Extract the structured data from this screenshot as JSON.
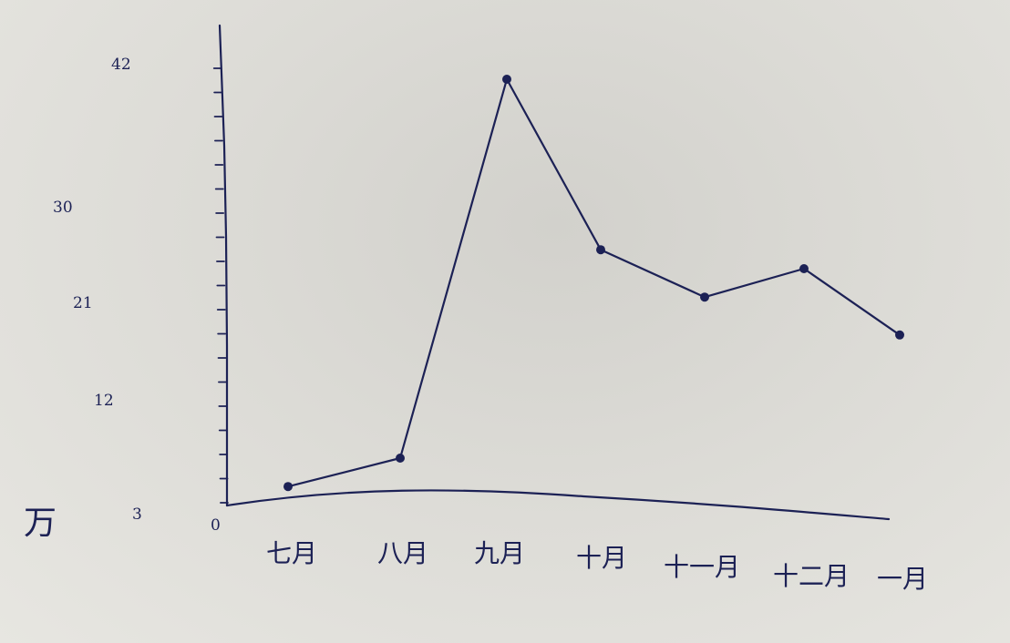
{
  "chart_data": {
    "type": "line",
    "title": "",
    "xlabel": "",
    "ylabel": "万",
    "categories": [
      "七月",
      "八月",
      "九月",
      "十月",
      "十一月",
      "十二月",
      "一月"
    ],
    "series": [
      {
        "values": [
          2,
          5,
          45,
          27,
          22,
          25,
          18
        ]
      }
    ],
    "y_ticks": [
      "3",
      "12",
      "21",
      "30",
      "42"
    ],
    "origin_label": "0",
    "ylim": [
      0,
      50
    ],
    "grid": false,
    "legend": "none",
    "colors": {
      "ink": "#1c2155"
    }
  }
}
